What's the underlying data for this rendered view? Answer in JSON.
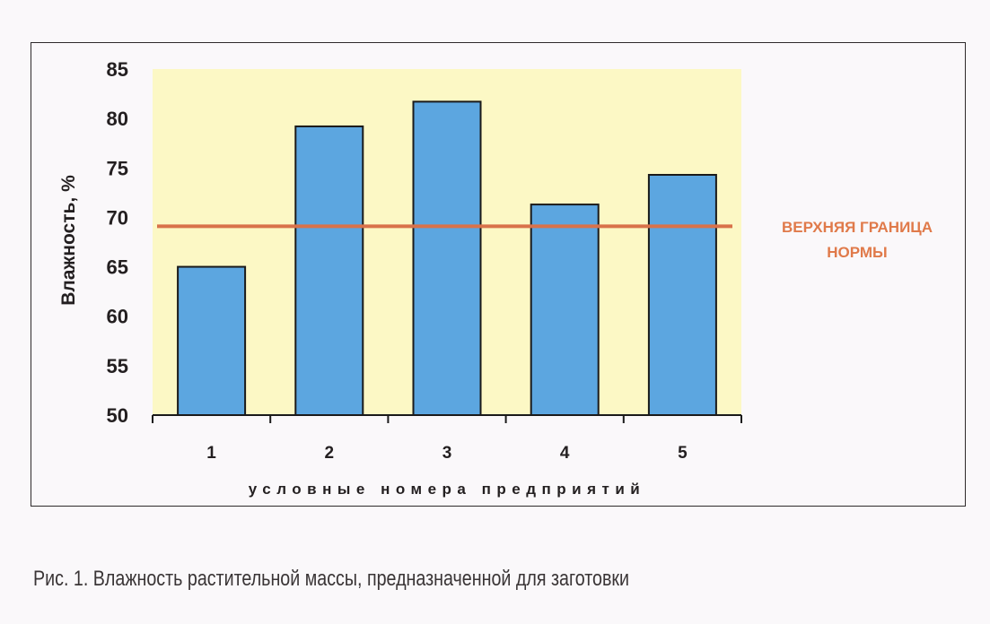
{
  "chart_data": {
    "type": "bar",
    "categories": [
      "1",
      "2",
      "3",
      "4",
      "5"
    ],
    "values": [
      65,
      79.2,
      81.7,
      71.3,
      74.3
    ],
    "ylabel": "Влажность, %",
    "xlabel": "условные номера предприятий",
    "ylim": [
      50,
      85
    ],
    "yticks": [
      50,
      55,
      60,
      65,
      70,
      75,
      80,
      85
    ],
    "reference_line": {
      "value": 69.1,
      "label_lines": [
        "ВЕРХНЯЯ ГРАНИЦА",
        "НОРМЫ"
      ]
    },
    "grid": false,
    "legend": "none"
  },
  "caption": "Рис. 1. Влажность растительной массы, предназначенной для заготовки",
  "colors": {
    "plot_background": "#fcf8c5",
    "bar_fill": "#5ca6e0",
    "bar_stroke": "#1a1a1a",
    "reference_line": "#d9724a",
    "reference_label": "#e07a4a"
  }
}
